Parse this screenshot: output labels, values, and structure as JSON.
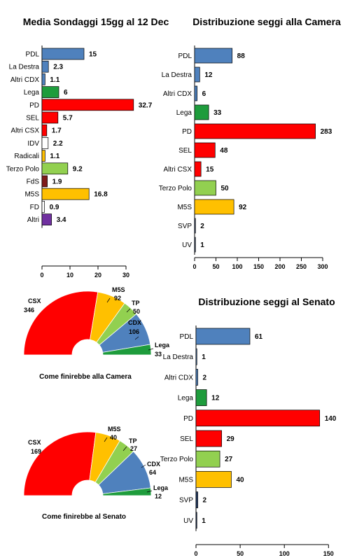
{
  "chart_data": [
    {
      "type": "bar",
      "orientation": "horizontal",
      "title": "Media Sondaggi 15gg al 12 Dec",
      "categories": [
        "PDL",
        "La Destra",
        "Altri CDX",
        "Lega",
        "PD",
        "SEL",
        "Altri CSX",
        "IDV",
        "Radicali",
        "Terzo Polo",
        "FdS",
        "M5S",
        "FD",
        "Altri"
      ],
      "values": [
        15,
        2.3,
        1.1,
        6,
        32.7,
        5.7,
        1.7,
        2.2,
        1.1,
        9.2,
        1.9,
        16.8,
        0.9,
        3.4
      ],
      "value_labels": [
        "15",
        "2.3",
        "1.1",
        "6",
        "32.7",
        "5.7",
        "1.7",
        "2.2",
        "1.1",
        "9.2",
        "1.9",
        "16.8",
        "0.9",
        "3.4"
      ],
      "colors": [
        "#4f81bd",
        "#4f81bd",
        "#4f81bd",
        "#1e9c3c",
        "#ff0000",
        "#ff0000",
        "#ff0000",
        "#ffffff",
        "#ffc000",
        "#92d050",
        "#7f1a1a",
        "#ffc000",
        "#ffffff",
        "#7030a0"
      ],
      "xlim": [
        0,
        35
      ],
      "xticks": [
        "0",
        "10",
        "20",
        "30"
      ],
      "xtick_values": [
        0,
        10,
        20,
        30
      ]
    },
    {
      "type": "bar",
      "orientation": "horizontal",
      "title": "Distribuzione seggi alla Camera",
      "categories": [
        "PDL",
        "La Destra",
        "Altri CDX",
        "Lega",
        "PD",
        "SEL",
        "Altri CSX",
        "Terzo Polo",
        "M5S",
        "SVP",
        "UV"
      ],
      "values": [
        88,
        12,
        6,
        33,
        283,
        48,
        15,
        50,
        92,
        2,
        1
      ],
      "value_labels": [
        "88",
        "12",
        "6",
        "33",
        "283",
        "48",
        "15",
        "50",
        "92",
        "2",
        "1"
      ],
      "colors": [
        "#4f81bd",
        "#4f81bd",
        "#4f81bd",
        "#1e9c3c",
        "#ff0000",
        "#ff0000",
        "#ff0000",
        "#92d050",
        "#ffc000",
        "#1f3864",
        "#1f3864"
      ],
      "xlim": [
        0,
        300
      ],
      "xticks": [
        "0",
        "50",
        "100",
        "150",
        "200",
        "250",
        "300"
      ],
      "xtick_values": [
        0,
        50,
        100,
        150,
        200,
        250,
        300
      ]
    },
    {
      "type": "bar",
      "orientation": "horizontal",
      "title": "Distribuzione seggi al Senato",
      "categories": [
        "PDL",
        "La Destra",
        "Altri CDX",
        "Lega",
        "PD",
        "SEL",
        "Terzo Polo",
        "M5S",
        "SVP",
        "UV"
      ],
      "values": [
        61,
        1,
        2,
        12,
        140,
        29,
        27,
        40,
        2,
        1
      ],
      "value_labels": [
        "61",
        "1",
        "2",
        "12",
        "140",
        "29",
        "27",
        "40",
        "2",
        "1"
      ],
      "colors": [
        "#4f81bd",
        "#4f81bd",
        "#4f81bd",
        "#1e9c3c",
        "#ff0000",
        "#ff0000",
        "#92d050",
        "#ffc000",
        "#1f3864",
        "#1f3864"
      ],
      "xlim": [
        0,
        145
      ],
      "xticks": [
        "0",
        "50",
        "100",
        "150"
      ],
      "xtick_values": [
        0,
        50,
        100,
        150
      ]
    },
    {
      "type": "pie",
      "subtype": "semicircle",
      "caption": "Come finirebbe alla Camera",
      "slices": [
        {
          "name": "CSX",
          "value": 346,
          "color": "#ff0000"
        },
        {
          "name": "M5S",
          "value": 92,
          "color": "#ffc000"
        },
        {
          "name": "TP",
          "value": 50,
          "color": "#92d050"
        },
        {
          "name": "CDX",
          "value": 106,
          "color": "#4f81bd"
        },
        {
          "name": "Lega",
          "value": 33,
          "color": "#1e9c3c"
        }
      ]
    },
    {
      "type": "pie",
      "subtype": "semicircle",
      "caption": "Come finirebbe al Senato",
      "slices": [
        {
          "name": "CSX",
          "value": 169,
          "color": "#ff0000"
        },
        {
          "name": "M5S",
          "value": 40,
          "color": "#ffc000"
        },
        {
          "name": "TP",
          "value": 27,
          "color": "#92d050"
        },
        {
          "name": "CDX",
          "value": 64,
          "color": "#4f81bd"
        },
        {
          "name": "Lega",
          "value": 12,
          "color": "#1e9c3c"
        }
      ]
    }
  ]
}
